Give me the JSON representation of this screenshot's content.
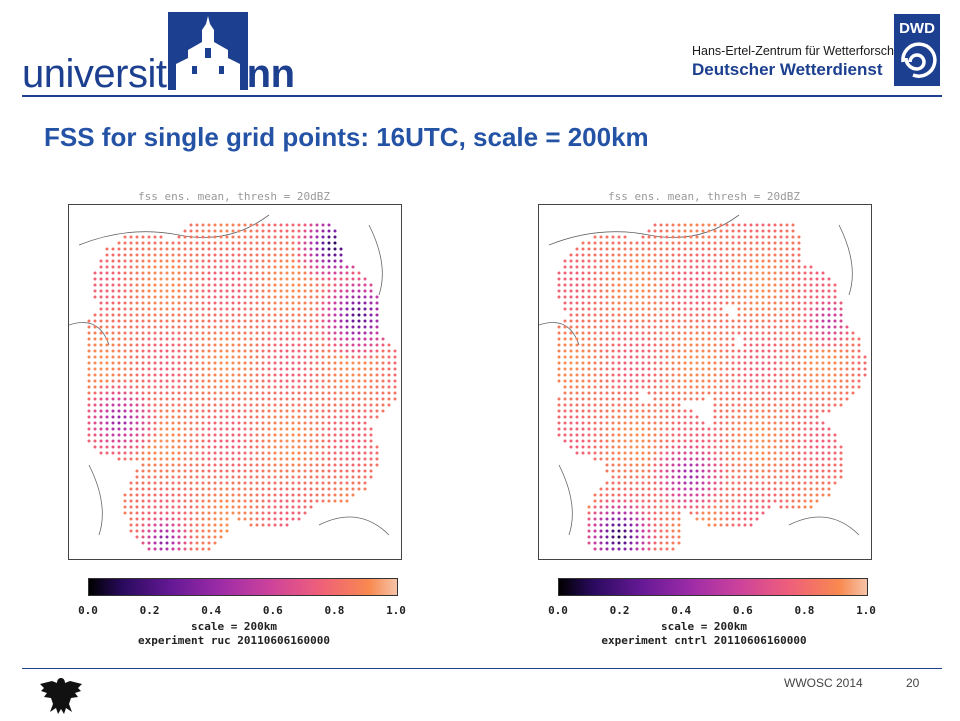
{
  "header": {
    "uni_wordmark_regular": "universität",
    "uni_wordmark_bold": "bonn",
    "dwd_line1": "Hans-Ertel-Zentrum für Wetterforschung",
    "dwd_line2": "Deutscher Wetterdienst",
    "dwd_logo_text": "DWD"
  },
  "slide": {
    "title": "FSS for single grid points: 16UTC, scale = 200km"
  },
  "colors": {
    "title_blue": "#2453a6",
    "brand_blue": "#1c3f8f",
    "colormap": [
      "#000000",
      "#2a0a5e",
      "#7a1ea8",
      "#c23aa6",
      "#ef5f7a",
      "#f8894f",
      "#f5f5f5"
    ]
  },
  "chart_data": [
    {
      "type": "scatter",
      "title": "fss ens. mean, thresh = 20dBZ",
      "colorbar": {
        "range": [
          0.0,
          1.0
        ],
        "ticks": [
          "0.0",
          "0.2",
          "0.4",
          "0.6",
          "0.8",
          "1.0"
        ]
      },
      "caption_line1": "scale = 200km",
      "caption_line2": "experiment ruc 20110606160000",
      "low_score_regions": [
        "east",
        "north-east",
        "west",
        "south-west corner"
      ]
    },
    {
      "type": "scatter",
      "title": "fss ens. mean, thresh = 20dBZ",
      "colorbar": {
        "range": [
          0.0,
          1.0
        ],
        "ticks": [
          "0.0",
          "0.2",
          "0.4",
          "0.6",
          "0.8",
          "1.0"
        ]
      },
      "caption_line1": "scale = 200km",
      "caption_line2": "experiment cntrl 20110606160000",
      "low_score_regions": [
        "south-west",
        "east"
      ]
    }
  ],
  "footer": {
    "conference": "WWOSC 2014",
    "page_number": "20"
  }
}
